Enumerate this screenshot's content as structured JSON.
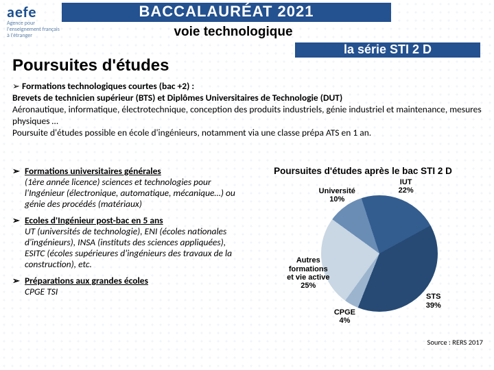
{
  "logo": {
    "main": "aefe",
    "sub1": "Agence pour",
    "sub2": "l'enseignement français",
    "sub3": "à l'étranger"
  },
  "title": "BACCALAURÉAT 2021",
  "subtitle": "voie technologique",
  "serie": "la série STI 2 D",
  "section": "Poursuites d'études",
  "intro_head": "Formations technologiques courtes (bac +2) :",
  "intro_body1": "Brevets de technicien supérieur (BTS) et Diplômes Universitaires de Technologie (DUT)",
  "intro_body2": "Aéronautique, informatique, électrotechnique, conception des produits industriels, génie industriel et maintenance, mesures physiques …",
  "intro_body3": "Poursuite d'études possible en école d'ingénieurs, notamment via une classe prépa ATS en 1 an.",
  "items": [
    {
      "head": "Formations universitaires générales",
      "sub": "(1ère année licence) sciences et technologies pour l'Ingénieur (électronique, automatique, mécanique…) ou génie des procédés (matériaux)"
    },
    {
      "head": "Ecoles d'Ingénieur post-bac en 5 ans",
      "sub": "UT (universités de technologie), ENI (écoles nationales d'ingénieurs), INSA (instituts des sciences appliquées), ESITC (écoles supérieures d'ingénieurs des travaux de la construction), etc."
    },
    {
      "head": "Préparations aux grandes écoles",
      "sub": "CPGE TSI"
    }
  ],
  "chart": {
    "type": "pie",
    "title": "Poursuites d'études après le bac STI 2 D",
    "slices": [
      {
        "label": "Université",
        "pct": 10,
        "color": "#6a8db6"
      },
      {
        "label": "IUT",
        "pct": 22,
        "color": "#345d8f"
      },
      {
        "label": "STS",
        "pct": 39,
        "color": "#264a74"
      },
      {
        "label": "CPGE",
        "pct": 4,
        "color": "#9cb4ce"
      },
      {
        "label": "Autres formations et vie active",
        "pct": 25,
        "color": "#c9d6e3"
      }
    ],
    "background_color": "#ffffff",
    "label_fontsize": 11,
    "title_fontsize": 13.5
  },
  "source": "Source : RERS 2017"
}
